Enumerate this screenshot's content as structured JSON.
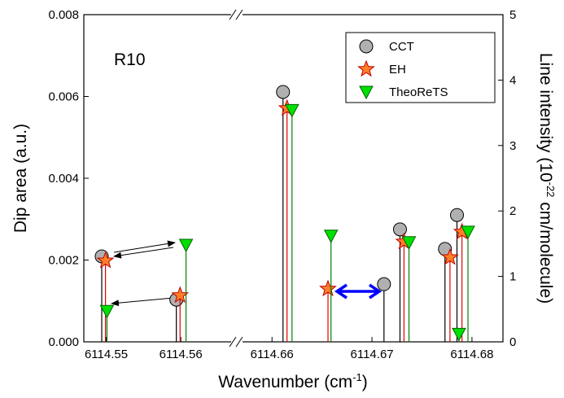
{
  "chart_data": {
    "type": "stick",
    "annotation": "R10",
    "x_label": [
      "Wavenumber (cm",
      "-1",
      ")"
    ],
    "y_label": "Dip area (a.u.)",
    "y2_label": [
      "Line intensity (10",
      "-22",
      " cm/molecule)"
    ],
    "x_segments": [
      {
        "xlim": [
          6114.547,
          6114.5674
        ],
        "xticks": [
          6114.55,
          6114.56
        ]
      },
      {
        "xlim": [
          6114.6564,
          6114.6831
        ],
        "xticks": [
          6114.66,
          6114.67,
          6114.68
        ]
      }
    ],
    "ylim": [
      0,
      0.008
    ],
    "yticks": [
      {
        "value": 0,
        "label": "0.000"
      },
      {
        "value": 0.002,
        "label": "0.002"
      },
      {
        "value": 0.004,
        "label": "0.004"
      },
      {
        "value": 0.006,
        "label": "0.006"
      },
      {
        "value": 0.008,
        "label": "0.008"
      }
    ],
    "y2lim": [
      0,
      5
    ],
    "y2ticks": [
      0,
      1,
      2,
      3,
      4,
      5
    ],
    "legend": "upper right",
    "series": [
      {
        "name": "CCT",
        "marker": "circle",
        "color": "#b0b0b0",
        "stick_color": "#000000",
        "x": [
          6114.5494,
          6114.5594,
          6114.6611,
          6114.6712,
          6114.6728,
          6114.6773,
          6114.6785
        ],
        "values": [
          0.00209,
          0.00103,
          0.00611,
          0.00141,
          0.00275,
          0.00227,
          0.0031
        ]
      },
      {
        "name": "EH",
        "marker": "star",
        "color": "#ff7f27",
        "stick_color": "#e00000",
        "axis": "y2",
        "x": [
          6114.5499,
          6114.5599,
          6114.6615,
          6114.6656,
          6114.6732,
          6114.6778,
          6114.679
        ],
        "values": [
          1.24,
          0.71,
          3.57,
          0.81,
          1.53,
          1.29,
          1.68
        ]
      },
      {
        "name": "TheoReTS",
        "marker": "triangle",
        "color": "#00e000",
        "stick_color": "#008000",
        "axis": "y2",
        "x": [
          6114.5501,
          6114.5607,
          6114.662,
          6114.6659,
          6114.6737,
          6114.6787,
          6114.6796
        ],
        "values": [
          0.47,
          1.48,
          3.54,
          1.62,
          1.52,
          0.12,
          1.68
        ]
      }
    ]
  }
}
